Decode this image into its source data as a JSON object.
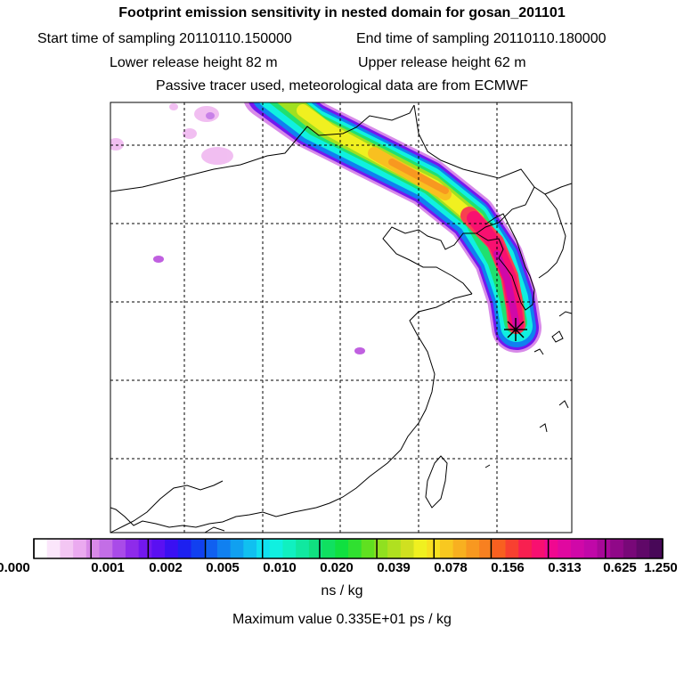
{
  "header": {
    "title": "Footprint emission sensitivity in nested domain for gosan_201101",
    "start_time": "Start time of sampling 20110110.150000",
    "end_time": "End time of sampling 20110110.180000",
    "lower_height": "Lower release height   82 m",
    "upper_height": "Upper release height   62 m",
    "tracer_note": "Passive tracer used, meteorological data are from ECMWF"
  },
  "colorbar": {
    "ticks": [
      "0.000",
      "0.001",
      "0.002",
      "0.005",
      "0.010",
      "0.020",
      "0.039",
      "0.078",
      "0.156",
      "0.313",
      "0.625",
      "1.250"
    ],
    "units": "ns / kg",
    "colors": [
      "#ffffff",
      "#fbe6fb",
      "#f3c6f3",
      "#ebaaf0",
      "#d98ae8",
      "#c36ee6",
      "#a94be8",
      "#8e2bea",
      "#7318ef",
      "#5a10f2",
      "#3a10f2",
      "#1d20f0",
      "#1140f0",
      "#1060f0",
      "#1080f0",
      "#10a0f0",
      "#10c0f0",
      "#10e0f0",
      "#10f0e0",
      "#10f0c0",
      "#10e8a0",
      "#10e080",
      "#10e060",
      "#10e040",
      "#30e030",
      "#60e020",
      "#90e020",
      "#b0e020",
      "#d0e020",
      "#f0f020",
      "#f8e020",
      "#f8c820",
      "#f8b020",
      "#f89820",
      "#f88020",
      "#f86020",
      "#f84030",
      "#f82050",
      "#f81070",
      "#f00890",
      "#e008a0",
      "#d008a8",
      "#c008a8",
      "#a80898",
      "#900888",
      "#780878",
      "#600868",
      "#480858"
    ]
  },
  "max_value": "Maximum value  0.335E+01 ps / kg",
  "receptor": {
    "name": "gosan"
  }
}
